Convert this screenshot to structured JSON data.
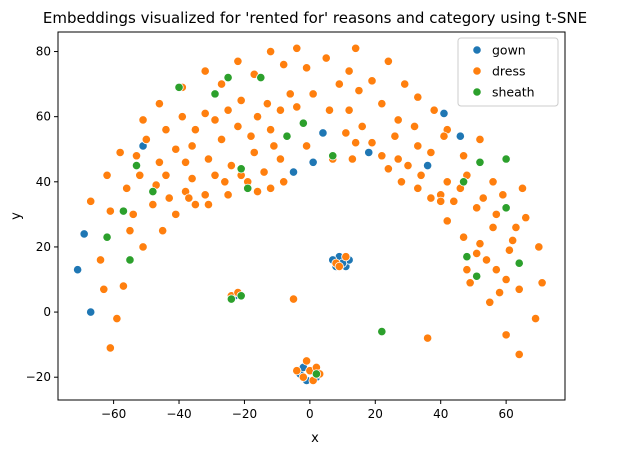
{
  "chart_data": {
    "type": "scatter",
    "title": "Embeddings visualized for 'rented for' reasons and category using t-SNE",
    "xlabel": "x",
    "ylabel": "y",
    "xlim": [
      -77,
      78
    ],
    "ylim": [
      -27,
      86
    ],
    "xticks": [
      -60,
      -40,
      -20,
      0,
      20,
      40,
      60
    ],
    "yticks": [
      -20,
      0,
      20,
      40,
      60,
      80
    ],
    "grid": false,
    "legend_position": "top-right",
    "series": [
      {
        "name": "gown",
        "color": "#1f77b4",
        "points": [
          [
            -71,
            13
          ],
          [
            -69,
            24
          ],
          [
            -67,
            0
          ],
          [
            -51,
            51
          ],
          [
            -25,
            36
          ],
          [
            -5,
            43
          ],
          [
            1,
            46
          ],
          [
            4,
            55
          ],
          [
            18,
            49
          ],
          [
            36,
            45
          ],
          [
            41,
            61
          ],
          [
            46,
            54
          ],
          [
            10,
            16
          ],
          [
            8,
            14
          ],
          [
            11,
            14
          ],
          [
            9,
            17
          ],
          [
            7,
            16
          ],
          [
            12,
            16
          ],
          [
            10,
            15
          ],
          [
            -3,
            -19
          ],
          [
            -1,
            -21
          ],
          [
            2,
            -20
          ],
          [
            -2,
            -17
          ],
          [
            1,
            -18
          ],
          [
            -23,
            5
          ]
        ]
      },
      {
        "name": "dress",
        "color": "#ff7f0e",
        "points": [
          [
            -4,
            81
          ],
          [
            14,
            81
          ],
          [
            -22,
            77
          ],
          [
            -12,
            80
          ],
          [
            5,
            78
          ],
          [
            -32,
            74
          ],
          [
            -17,
            73
          ],
          [
            -8,
            76
          ],
          [
            -1,
            75
          ],
          [
            12,
            74
          ],
          [
            24,
            77
          ],
          [
            29,
            70
          ],
          [
            -46,
            64
          ],
          [
            -39,
            69
          ],
          [
            -27,
            70
          ],
          [
            -21,
            65
          ],
          [
            -13,
            64
          ],
          [
            -6,
            67
          ],
          [
            1,
            67
          ],
          [
            9,
            70
          ],
          [
            15,
            68
          ],
          [
            19,
            71
          ],
          [
            -39,
            60
          ],
          [
            -32,
            61
          ],
          [
            -25,
            62
          ],
          [
            -16,
            60
          ],
          [
            -9,
            62
          ],
          [
            -4,
            63
          ],
          [
            6,
            62
          ],
          [
            12,
            62
          ],
          [
            22,
            64
          ],
          [
            33,
            66
          ],
          [
            38,
            62
          ],
          [
            -51,
            59
          ],
          [
            -44,
            56
          ],
          [
            -35,
            56
          ],
          [
            -29,
            59
          ],
          [
            -22,
            57
          ],
          [
            -12,
            56
          ],
          [
            -7,
            54
          ],
          [
            11,
            55
          ],
          [
            16,
            57
          ],
          [
            27,
            59
          ],
          [
            32,
            57
          ],
          [
            42,
            56
          ],
          [
            -50,
            53
          ],
          [
            -41,
            50
          ],
          [
            -36,
            51
          ],
          [
            -27,
            53
          ],
          [
            -18,
            54
          ],
          [
            -11,
            51
          ],
          [
            -1,
            51
          ],
          [
            14,
            52
          ],
          [
            19,
            52
          ],
          [
            26,
            54
          ],
          [
            33,
            51
          ],
          [
            41,
            54
          ],
          [
            -53,
            48
          ],
          [
            -46,
            46
          ],
          [
            -38,
            46
          ],
          [
            -31,
            47
          ],
          [
            -24,
            45
          ],
          [
            -17,
            49
          ],
          [
            -9,
            47
          ],
          [
            7,
            47
          ],
          [
            13,
            47
          ],
          [
            22,
            48
          ],
          [
            27,
            47
          ],
          [
            37,
            49
          ],
          [
            47,
            48
          ],
          [
            52,
            53
          ],
          [
            -58,
            49
          ],
          [
            -52,
            42
          ],
          [
            -44,
            42
          ],
          [
            -36,
            41
          ],
          [
            -29,
            42
          ],
          [
            -21,
            42
          ],
          [
            -14,
            43
          ],
          [
            -8,
            40
          ],
          [
            24,
            44
          ],
          [
            30,
            45
          ],
          [
            34,
            42
          ],
          [
            42,
            40
          ],
          [
            48,
            42
          ],
          [
            56,
            40
          ],
          [
            -56,
            38
          ],
          [
            -47,
            39
          ],
          [
            -38,
            37
          ],
          [
            -32,
            36
          ],
          [
            -26,
            40
          ],
          [
            -19,
            40
          ],
          [
            -12,
            38
          ],
          [
            28,
            40
          ],
          [
            33,
            38
          ],
          [
            40,
            36
          ],
          [
            46,
            38
          ],
          [
            53,
            35
          ],
          [
            59,
            36
          ],
          [
            -62,
            42
          ],
          [
            -67,
            34
          ],
          [
            -61,
            31
          ],
          [
            -54,
            30
          ],
          [
            -43,
            35
          ],
          [
            -35,
            33
          ],
          [
            -25,
            36
          ],
          [
            -16,
            37
          ],
          [
            37,
            35
          ],
          [
            44,
            34
          ],
          [
            51,
            32
          ],
          [
            57,
            30
          ],
          [
            65,
            38
          ],
          [
            -48,
            33
          ],
          [
            -41,
            30
          ],
          [
            -37,
            35
          ],
          [
            -31,
            33
          ],
          [
            -55,
            25
          ],
          [
            -45,
            25
          ],
          [
            -51,
            20
          ],
          [
            -64,
            16
          ],
          [
            -63,
            7
          ],
          [
            -57,
            8
          ],
          [
            -61,
            -11
          ],
          [
            -59,
            -2
          ],
          [
            40,
            34
          ],
          [
            42,
            28
          ],
          [
            47,
            23
          ],
          [
            52,
            21
          ],
          [
            56,
            26
          ],
          [
            63,
            26
          ],
          [
            66,
            29
          ],
          [
            70,
            20
          ],
          [
            54,
            16
          ],
          [
            61,
            19
          ],
          [
            48,
            13
          ],
          [
            57,
            13
          ],
          [
            62,
            22
          ],
          [
            51,
            18
          ],
          [
            60,
            10
          ],
          [
            71,
            9
          ],
          [
            69,
            -2
          ],
          [
            64,
            7
          ],
          [
            58,
            6
          ],
          [
            55,
            3
          ],
          [
            49,
            9
          ],
          [
            60,
            -7
          ],
          [
            64,
            -13
          ],
          [
            36,
            -8
          ],
          [
            -5,
            4
          ],
          [
            -24,
            5
          ],
          [
            -22,
            6
          ],
          [
            0,
            -18
          ],
          [
            -2,
            -20
          ],
          [
            2,
            -17
          ],
          [
            -1,
            -15
          ],
          [
            1,
            -21
          ],
          [
            3,
            -19
          ],
          [
            -4,
            -18
          ],
          [
            8,
            15
          ],
          [
            11,
            17
          ],
          [
            9,
            14
          ]
        ]
      },
      {
        "name": "sheath",
        "color": "#2ca02c",
        "points": [
          [
            -40,
            69
          ],
          [
            -25,
            72
          ],
          [
            -15,
            72
          ],
          [
            -29,
            67
          ],
          [
            -7,
            54
          ],
          [
            -2,
            58
          ],
          [
            7,
            48
          ],
          [
            -21,
            44
          ],
          [
            -53,
            45
          ],
          [
            -48,
            37
          ],
          [
            -19,
            38
          ],
          [
            -62,
            23
          ],
          [
            -57,
            31
          ],
          [
            -55,
            16
          ],
          [
            47,
            40
          ],
          [
            52,
            46
          ],
          [
            60,
            47
          ],
          [
            60,
            32
          ],
          [
            48,
            17
          ],
          [
            51,
            11
          ],
          [
            64,
            15
          ],
          [
            22,
            -6
          ],
          [
            -24,
            4
          ],
          [
            -21,
            5
          ],
          [
            2,
            -19
          ]
        ]
      }
    ]
  }
}
